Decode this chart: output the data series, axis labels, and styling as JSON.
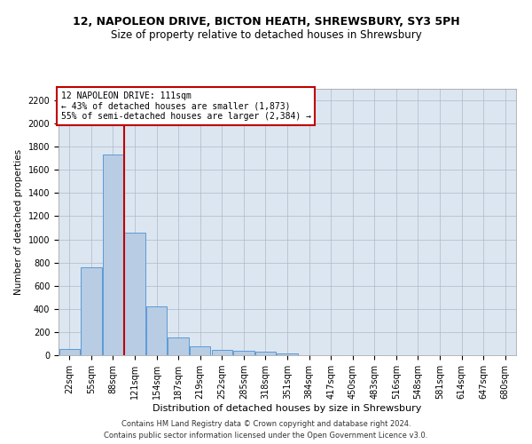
{
  "title1": "12, NAPOLEON DRIVE, BICTON HEATH, SHREWSBURY, SY3 5PH",
  "title2": "Size of property relative to detached houses in Shrewsbury",
  "xlabel": "Distribution of detached houses by size in Shrewsbury",
  "ylabel": "Number of detached properties",
  "footnote1": "Contains HM Land Registry data © Crown copyright and database right 2024.",
  "footnote2": "Contains public sector information licensed under the Open Government Licence v3.0.",
  "bar_labels": [
    "22sqm",
    "55sqm",
    "88sqm",
    "121sqm",
    "154sqm",
    "187sqm",
    "219sqm",
    "252sqm",
    "285sqm",
    "318sqm",
    "351sqm",
    "384sqm",
    "417sqm",
    "450sqm",
    "483sqm",
    "516sqm",
    "548sqm",
    "581sqm",
    "614sqm",
    "647sqm",
    "680sqm"
  ],
  "bar_values": [
    55,
    760,
    1730,
    1060,
    420,
    150,
    80,
    47,
    38,
    28,
    18,
    0,
    0,
    0,
    0,
    0,
    0,
    0,
    0,
    0,
    0
  ],
  "bar_color": "#b8cce4",
  "bar_edge_color": "#5b9bd5",
  "vline_x": 2.5,
  "vline_color": "#c00000",
  "ylim": [
    0,
    2300
  ],
  "yticks": [
    0,
    200,
    400,
    600,
    800,
    1000,
    1200,
    1400,
    1600,
    1800,
    2000,
    2200
  ],
  "annotation_text": "12 NAPOLEON DRIVE: 111sqm\n← 43% of detached houses are smaller (1,873)\n55% of semi-detached houses are larger (2,384) →",
  "annotation_box_color": "#ffffff",
  "annotation_box_edge": "#c00000",
  "bg_color": "#dce6f1",
  "title1_fontsize": 9,
  "title2_fontsize": 8.5,
  "xlabel_fontsize": 8,
  "ylabel_fontsize": 7.5,
  "tick_fontsize": 7,
  "annot_fontsize": 7,
  "footnote_fontsize": 6
}
